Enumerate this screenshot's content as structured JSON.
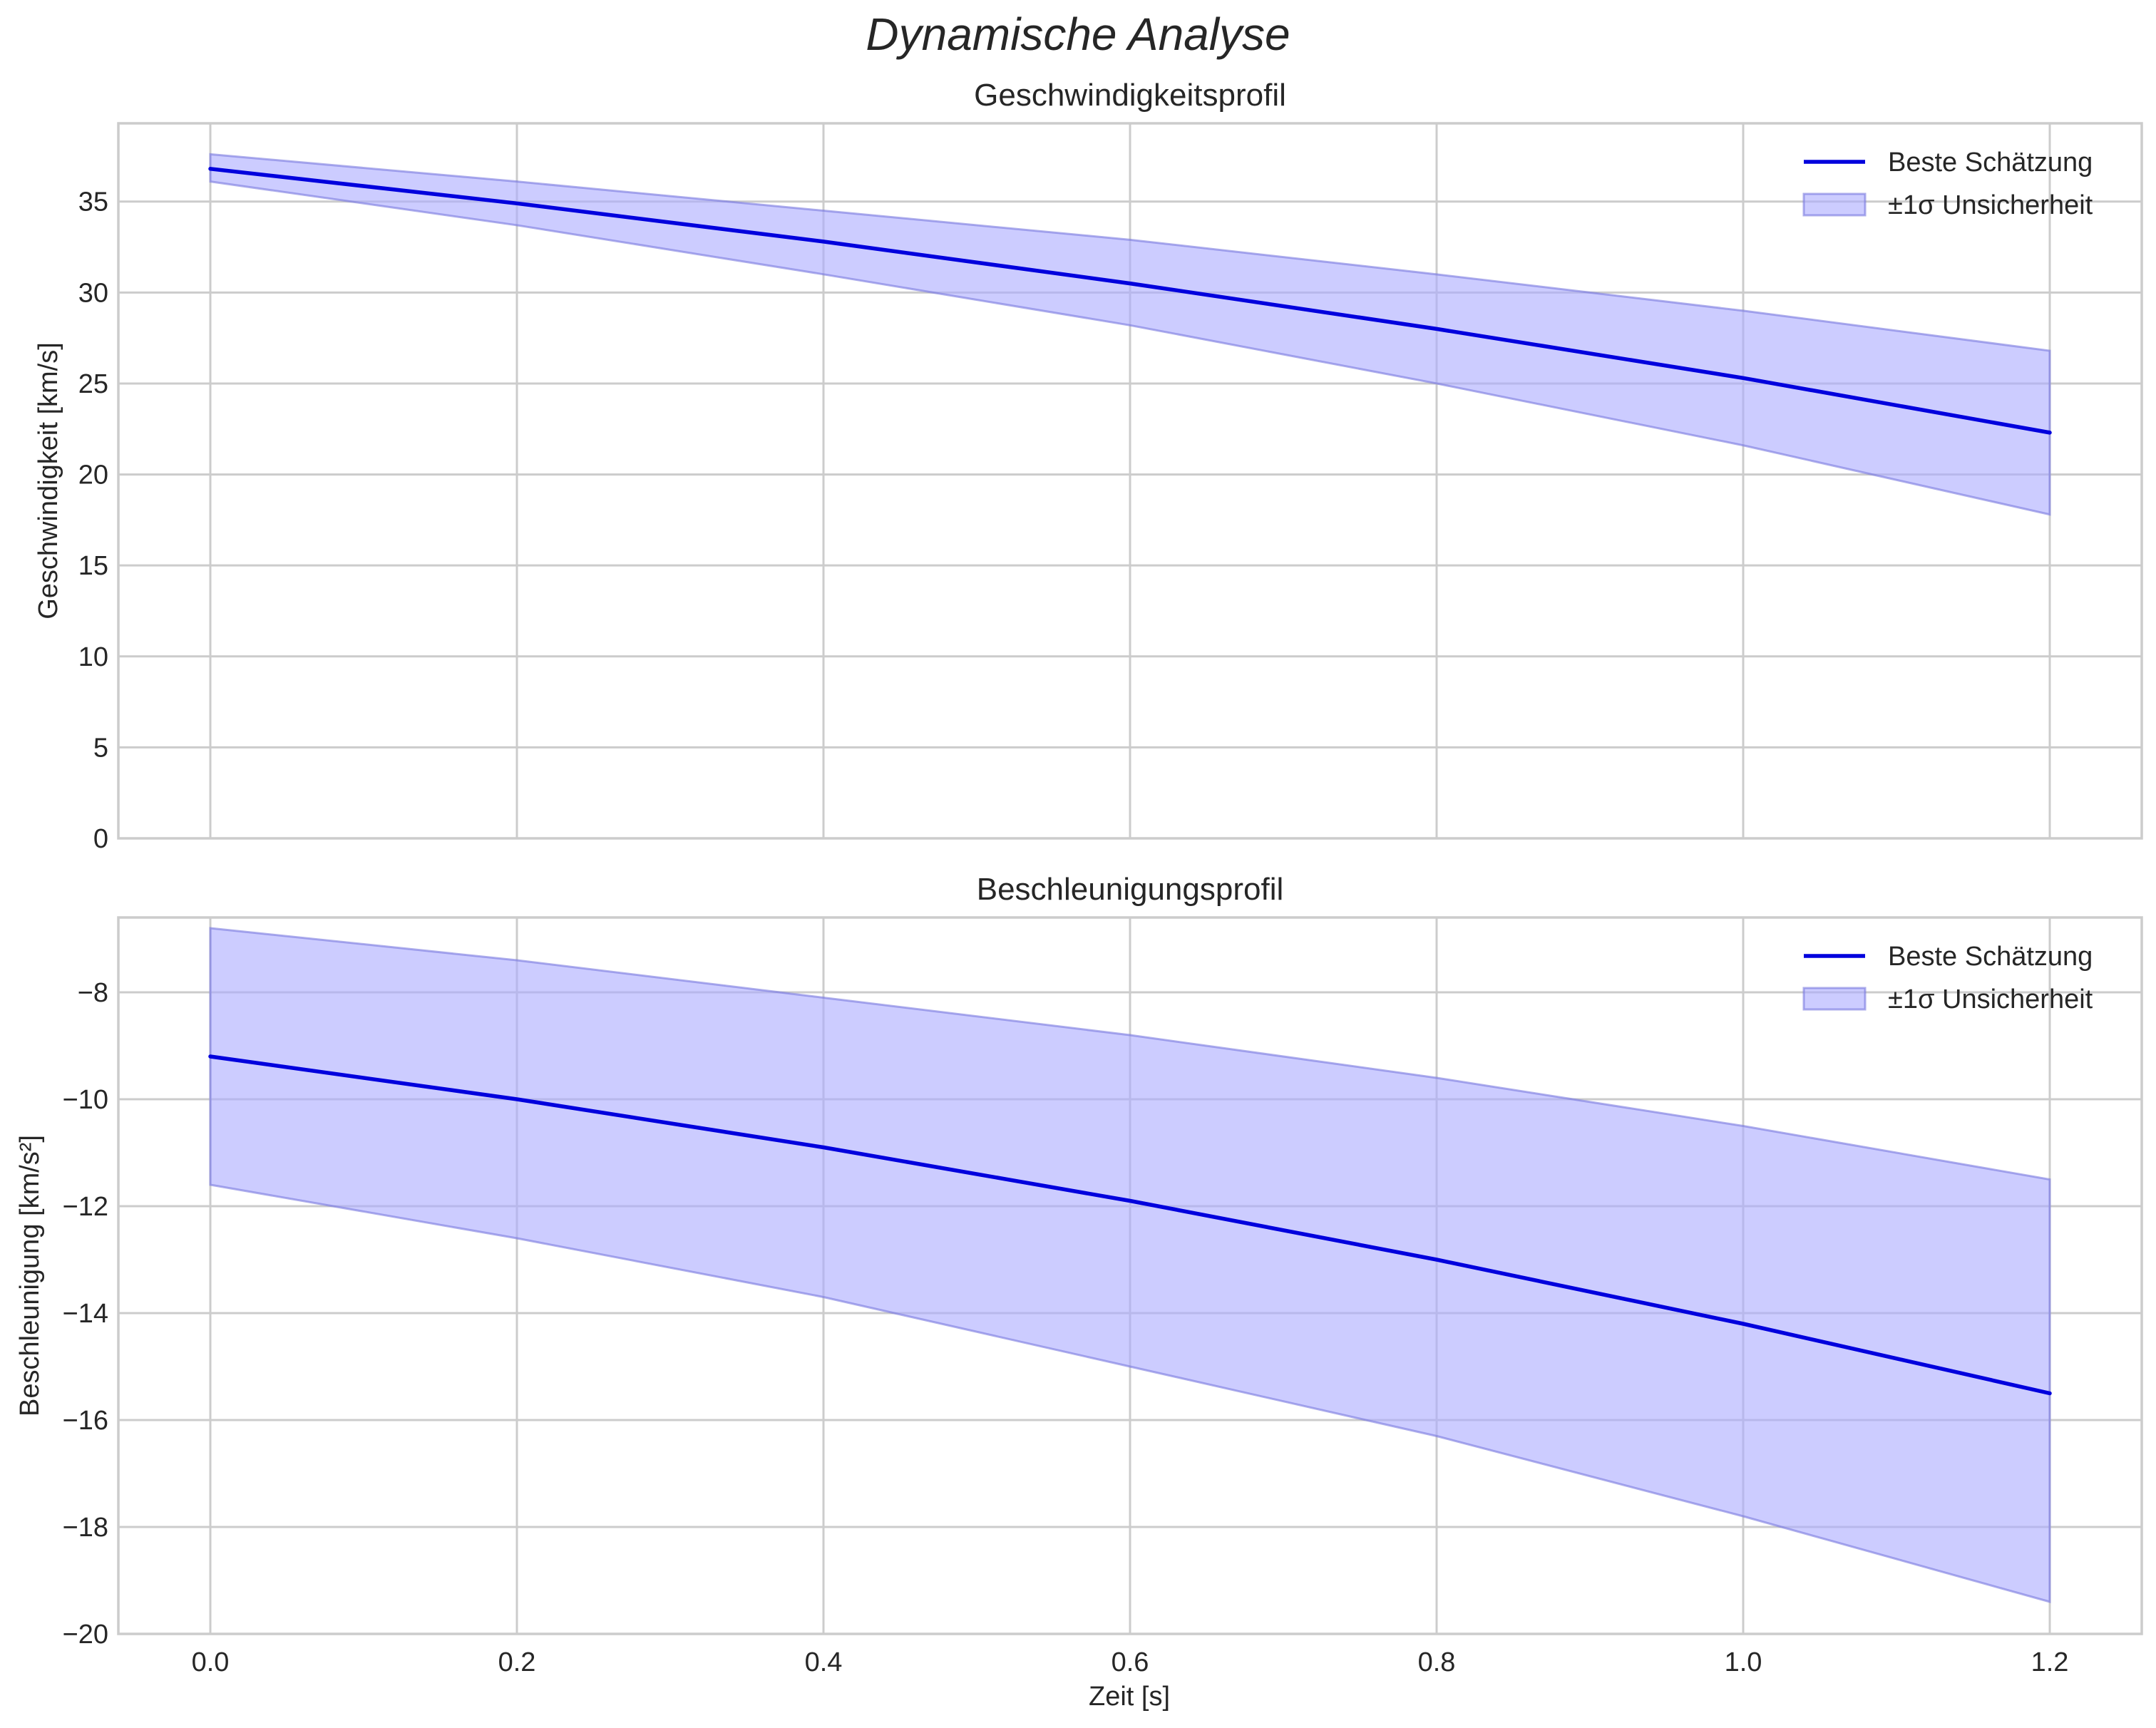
{
  "figure_title": "Dynamische Analyse",
  "legend": {
    "line": "Beste Schätzung",
    "band": "±1σ Unsicherheit"
  },
  "colors": {
    "line": "#0000dd",
    "band": "#aaaaff",
    "band_edge": "#7777dd",
    "grid": "#cccccc"
  },
  "xlabel": "Zeit [s]",
  "chart_data": [
    {
      "type": "line",
      "title": "Geschwindigkeitsprofil",
      "xlabel": "Zeit [s]",
      "ylabel": "Geschwindigkeit [km/s]",
      "xlim": [
        -0.06,
        1.26
      ],
      "ylim": [
        0,
        39.3
      ],
      "xticks": [
        0.0,
        0.2,
        0.4,
        0.6,
        0.8,
        1.0,
        1.2
      ],
      "xtick_labels": [
        "0.0",
        "0.2",
        "0.4",
        "0.6",
        "0.8",
        "1.0",
        "1.2"
      ],
      "yticks": [
        0,
        5,
        10,
        15,
        20,
        25,
        30,
        35
      ],
      "ytick_labels": [
        "0",
        "5",
        "10",
        "15",
        "20",
        "25",
        "30",
        "35"
      ],
      "x": [
        0.0,
        0.2,
        0.4,
        0.6,
        0.8,
        1.0,
        1.2
      ],
      "series": [
        {
          "name": "Beste Schätzung",
          "values": [
            36.8,
            34.9,
            32.8,
            30.5,
            28.0,
            25.3,
            22.3
          ]
        },
        {
          "name": "±1σ Unsicherheit",
          "lower": [
            36.1,
            33.7,
            31.0,
            28.2,
            25.0,
            21.6,
            17.8
          ],
          "upper": [
            37.6,
            36.1,
            34.5,
            32.9,
            31.0,
            29.0,
            26.8
          ]
        }
      ],
      "legend_position": "top-right",
      "grid": true
    },
    {
      "type": "line",
      "title": "Beschleunigungsprofil",
      "xlabel": "Zeit [s]",
      "ylabel": "Beschleunigung [km/s²]",
      "xlim": [
        -0.06,
        1.26
      ],
      "ylim": [
        -20,
        -6.6
      ],
      "xticks": [
        0.0,
        0.2,
        0.4,
        0.6,
        0.8,
        1.0,
        1.2
      ],
      "xtick_labels": [
        "0.0",
        "0.2",
        "0.4",
        "0.6",
        "0.8",
        "1.0",
        "1.2"
      ],
      "yticks": [
        -8,
        -10,
        -12,
        -14,
        -16,
        -18,
        -20
      ],
      "ytick_labels": [
        "−8",
        "−10",
        "−12",
        "−14",
        "−16",
        "−18",
        "−20"
      ],
      "x": [
        0.0,
        0.2,
        0.4,
        0.6,
        0.8,
        1.0,
        1.2
      ],
      "series": [
        {
          "name": "Beste Schätzung",
          "values": [
            -9.2,
            -10.0,
            -10.9,
            -11.9,
            -13.0,
            -14.2,
            -15.5
          ]
        },
        {
          "name": "±1σ Unsicherheit",
          "lower": [
            -11.6,
            -12.6,
            -13.7,
            -15.0,
            -16.3,
            -17.8,
            -19.4
          ],
          "upper": [
            -6.8,
            -7.4,
            -8.1,
            -8.8,
            -9.6,
            -10.5,
            -11.5
          ]
        }
      ],
      "legend_position": "top-right",
      "grid": true
    }
  ]
}
